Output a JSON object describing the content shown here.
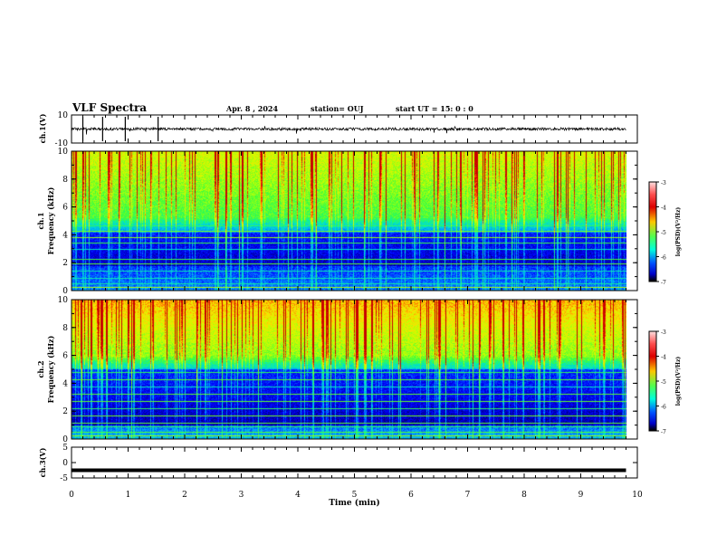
{
  "header": {
    "title": "VLF Spectra",
    "date": "Apr. 8 , 2024",
    "station": "station= OUJ",
    "start": "start UT = 15: 0 : 0"
  },
  "chart_data": [
    {
      "name": "ch1-waveform",
      "type": "line",
      "ylabel": "ch.1(V)",
      "ylim": [
        -10,
        10
      ],
      "yticks": [
        "10",
        "-10"
      ],
      "xlim": [
        0,
        10
      ],
      "data_end_min": 9.8,
      "baseline": 0
    },
    {
      "name": "ch1-spectrogram",
      "type": "heatmap",
      "ylabel": "Frequency (kHz)",
      "channel": "ch.1",
      "ylim": [
        0,
        10
      ],
      "yticks": [
        "0",
        "2",
        "4",
        "6",
        "8",
        "10"
      ],
      "xlim": [
        0,
        10
      ],
      "colorbar": {
        "label": "log(PSD)(V²/Hz)",
        "ticks": [
          "-3",
          "-4",
          "-5",
          "-6",
          "-7"
        ],
        "range": [
          -7,
          -3
        ]
      }
    },
    {
      "name": "ch2-spectrogram",
      "type": "heatmap",
      "ylabel": "Frequency (kHz)",
      "channel": "ch.2",
      "ylim": [
        0,
        10
      ],
      "yticks": [
        "0",
        "2",
        "4",
        "6",
        "8",
        "10"
      ],
      "xlim": [
        0,
        10
      ],
      "colorbar": {
        "label": "log(PSD)(V²/Hz)",
        "ticks": [
          "-3",
          "-4",
          "-5",
          "-6",
          "-7"
        ],
        "range": [
          -7,
          -3
        ]
      }
    },
    {
      "name": "ch3-waveform",
      "type": "line",
      "ylabel": "ch.3(V)",
      "ylim": [
        -5,
        5
      ],
      "yticks": [
        "5",
        "0",
        "-5"
      ],
      "xlim": [
        0,
        10
      ],
      "data_end_min": 9.8,
      "baseline": -2.5
    }
  ],
  "xaxis": {
    "label": "Time (min)",
    "ticks": [
      "0",
      "1",
      "2",
      "3",
      "4",
      "5",
      "6",
      "7",
      "8",
      "9",
      "10"
    ]
  }
}
